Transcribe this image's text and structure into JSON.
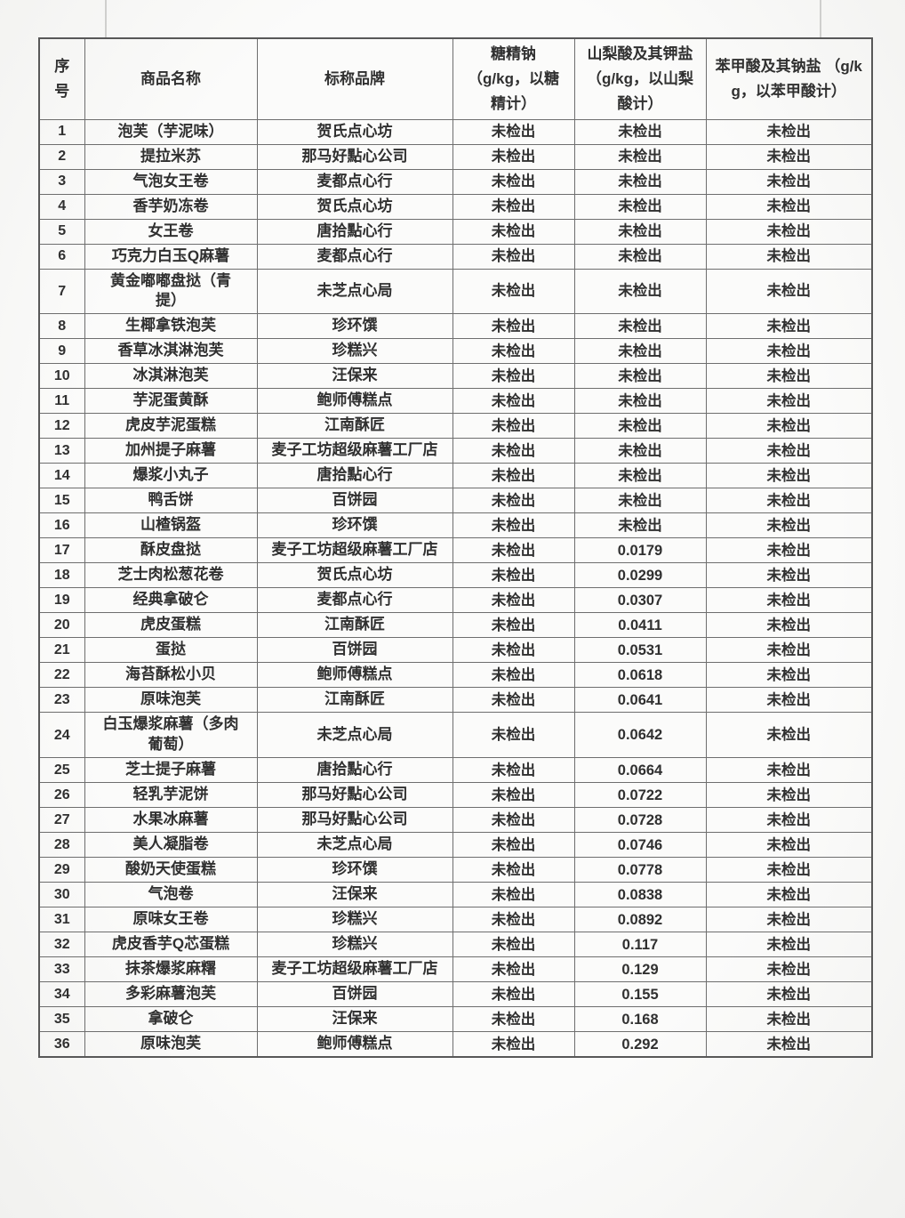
{
  "table": {
    "columns": [
      {
        "key": "index",
        "label": "序\n号"
      },
      {
        "key": "name",
        "label": "商品名称"
      },
      {
        "key": "brand",
        "label": "标称品牌"
      },
      {
        "key": "saccharin",
        "label": "糖精钠\n（g/kg，以糖\n精计）"
      },
      {
        "key": "sorbic",
        "label": "山梨酸及其钾盐\n（g/kg，以山梨\n酸计）"
      },
      {
        "key": "benzoic",
        "label": "苯甲酸及其钠盐 （g/k\ng，以苯甲酸计）"
      }
    ],
    "not_detected_label": "未检出",
    "rows": [
      {
        "index": "1",
        "name": "泡芙（芋泥味）",
        "brand": "贺氏点心坊",
        "saccharin": "未检出",
        "sorbic": "未检出",
        "benzoic": "未检出"
      },
      {
        "index": "2",
        "name": "提拉米苏",
        "brand": "那马好點心公司",
        "saccharin": "未检出",
        "sorbic": "未检出",
        "benzoic": "未检出"
      },
      {
        "index": "3",
        "name": "气泡女王卷",
        "brand": "麦都点心行",
        "saccharin": "未检出",
        "sorbic": "未检出",
        "benzoic": "未检出"
      },
      {
        "index": "4",
        "name": "香芋奶冻卷",
        "brand": "贺氏点心坊",
        "saccharin": "未检出",
        "sorbic": "未检出",
        "benzoic": "未检出"
      },
      {
        "index": "5",
        "name": "女王卷",
        "brand": "唐拾點心行",
        "saccharin": "未检出",
        "sorbic": "未检出",
        "benzoic": "未检出"
      },
      {
        "index": "6",
        "name": "巧克力白玉Q麻薯",
        "brand": "麦都点心行",
        "saccharin": "未检出",
        "sorbic": "未检出",
        "benzoic": "未检出"
      },
      {
        "index": "7",
        "name": "黄金嘟嘟盘挞（青\n提）",
        "brand": "未芝点心局",
        "saccharin": "未检出",
        "sorbic": "未检出",
        "benzoic": "未检出"
      },
      {
        "index": "8",
        "name": "生椰拿铁泡芙",
        "brand": "珍环馔",
        "saccharin": "未检出",
        "sorbic": "未检出",
        "benzoic": "未检出"
      },
      {
        "index": "9",
        "name": "香草冰淇淋泡芙",
        "brand": "珍糕兴",
        "saccharin": "未检出",
        "sorbic": "未检出",
        "benzoic": "未检出"
      },
      {
        "index": "10",
        "name": "冰淇淋泡芙",
        "brand": "汪保来",
        "saccharin": "未检出",
        "sorbic": "未检出",
        "benzoic": "未检出"
      },
      {
        "index": "11",
        "name": "芋泥蛋黄酥",
        "brand": "鲍师傅糕点",
        "saccharin": "未检出",
        "sorbic": "未检出",
        "benzoic": "未检出"
      },
      {
        "index": "12",
        "name": "虎皮芋泥蛋糕",
        "brand": "江南酥匠",
        "saccharin": "未检出",
        "sorbic": "未检出",
        "benzoic": "未检出"
      },
      {
        "index": "13",
        "name": "加州提子麻薯",
        "brand": "麦子工坊超级麻薯工厂店",
        "saccharin": "未检出",
        "sorbic": "未检出",
        "benzoic": "未检出"
      },
      {
        "index": "14",
        "name": "爆浆小丸子",
        "brand": "唐拾點心行",
        "saccharin": "未检出",
        "sorbic": "未检出",
        "benzoic": "未检出"
      },
      {
        "index": "15",
        "name": "鸭舌饼",
        "brand": "百饼园",
        "saccharin": "未检出",
        "sorbic": "未检出",
        "benzoic": "未检出"
      },
      {
        "index": "16",
        "name": "山楂锅盔",
        "brand": "珍环馔",
        "saccharin": "未检出",
        "sorbic": "未检出",
        "benzoic": "未检出"
      },
      {
        "index": "17",
        "name": "酥皮盘挞",
        "brand": "麦子工坊超级麻薯工厂店",
        "saccharin": "未检出",
        "sorbic": "0.0179",
        "benzoic": "未检出"
      },
      {
        "index": "18",
        "name": "芝士肉松葱花卷",
        "brand": "贺氏点心坊",
        "saccharin": "未检出",
        "sorbic": "0.0299",
        "benzoic": "未检出"
      },
      {
        "index": "19",
        "name": "经典拿破仑",
        "brand": "麦都点心行",
        "saccharin": "未检出",
        "sorbic": "0.0307",
        "benzoic": "未检出"
      },
      {
        "index": "20",
        "name": "虎皮蛋糕",
        "brand": "江南酥匠",
        "saccharin": "未检出",
        "sorbic": "0.0411",
        "benzoic": "未检出"
      },
      {
        "index": "21",
        "name": "蛋挞",
        "brand": "百饼园",
        "saccharin": "未检出",
        "sorbic": "0.0531",
        "benzoic": "未检出"
      },
      {
        "index": "22",
        "name": "海苔酥松小贝",
        "brand": "鲍师傅糕点",
        "saccharin": "未检出",
        "sorbic": "0.0618",
        "benzoic": "未检出"
      },
      {
        "index": "23",
        "name": "原味泡芙",
        "brand": "江南酥匠",
        "saccharin": "未检出",
        "sorbic": "0.0641",
        "benzoic": "未检出"
      },
      {
        "index": "24",
        "name": "白玉爆浆麻薯（多肉\n葡萄）",
        "brand": "未芝点心局",
        "saccharin": "未检出",
        "sorbic": "0.0642",
        "benzoic": "未检出"
      },
      {
        "index": "25",
        "name": "芝士提子麻薯",
        "brand": "唐拾點心行",
        "saccharin": "未检出",
        "sorbic": "0.0664",
        "benzoic": "未检出"
      },
      {
        "index": "26",
        "name": "轻乳芋泥饼",
        "brand": "那马好點心公司",
        "saccharin": "未检出",
        "sorbic": "0.0722",
        "benzoic": "未检出"
      },
      {
        "index": "27",
        "name": "水果冰麻薯",
        "brand": "那马好點心公司",
        "saccharin": "未检出",
        "sorbic": "0.0728",
        "benzoic": "未检出"
      },
      {
        "index": "28",
        "name": "美人凝脂卷",
        "brand": "未芝点心局",
        "saccharin": "未检出",
        "sorbic": "0.0746",
        "benzoic": "未检出"
      },
      {
        "index": "29",
        "name": "酸奶天使蛋糕",
        "brand": "珍环馔",
        "saccharin": "未检出",
        "sorbic": "0.0778",
        "benzoic": "未检出"
      },
      {
        "index": "30",
        "name": "气泡卷",
        "brand": "汪保来",
        "saccharin": "未检出",
        "sorbic": "0.0838",
        "benzoic": "未检出"
      },
      {
        "index": "31",
        "name": "原味女王卷",
        "brand": "珍糕兴",
        "saccharin": "未检出",
        "sorbic": "0.0892",
        "benzoic": "未检出"
      },
      {
        "index": "32",
        "name": "虎皮香芋Q芯蛋糕",
        "brand": "珍糕兴",
        "saccharin": "未检出",
        "sorbic": "0.117",
        "benzoic": "未检出"
      },
      {
        "index": "33",
        "name": "抹茶爆浆麻糬",
        "brand": "麦子工坊超级麻薯工厂店",
        "saccharin": "未检出",
        "sorbic": "0.129",
        "benzoic": "未检出"
      },
      {
        "index": "34",
        "name": "多彩麻薯泡芙",
        "brand": "百饼园",
        "saccharin": "未检出",
        "sorbic": "0.155",
        "benzoic": "未检出"
      },
      {
        "index": "35",
        "name": "拿破仑",
        "brand": "汪保来",
        "saccharin": "未检出",
        "sorbic": "0.168",
        "benzoic": "未检出"
      },
      {
        "index": "36",
        "name": "原味泡芙",
        "brand": "鲍师傅糕点",
        "saccharin": "未检出",
        "sorbic": "0.292",
        "benzoic": "未检出"
      }
    ]
  }
}
